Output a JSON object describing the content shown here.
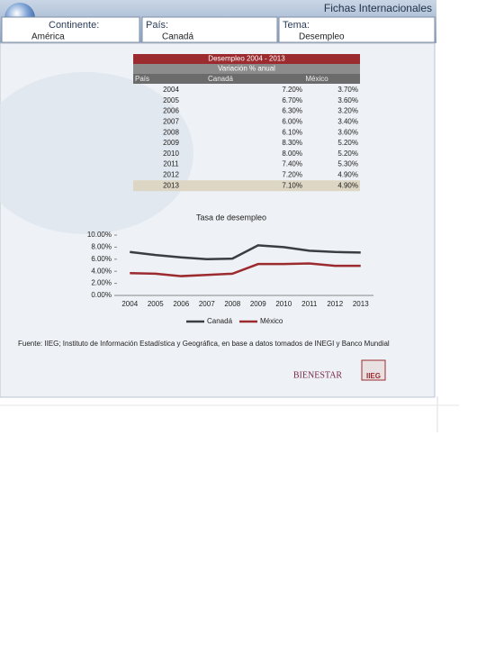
{
  "header": {
    "title": "Fichas Internacionales",
    "fields": [
      {
        "label": "Continente:",
        "value": "América"
      },
      {
        "label": "País:",
        "value": "Canadá"
      },
      {
        "label": "Tema:",
        "value": "Desempleo"
      }
    ]
  },
  "table": {
    "title": "Desempleo 2004 - 2013",
    "subtitle": "Variación % anual",
    "columns": [
      "País",
      "Canadá",
      "México"
    ],
    "rows": [
      [
        "2004",
        "7.20%",
        "3.70%"
      ],
      [
        "2005",
        "6.70%",
        "3.60%"
      ],
      [
        "2006",
        "6.30%",
        "3.20%"
      ],
      [
        "2007",
        "6.00%",
        "3.40%"
      ],
      [
        "2008",
        "6.10%",
        "3.60%"
      ],
      [
        "2009",
        "8.30%",
        "5.20%"
      ],
      [
        "2010",
        "8.00%",
        "5.20%"
      ],
      [
        "2011",
        "7.40%",
        "5.30%"
      ],
      [
        "2012",
        "7.20%",
        "4.90%"
      ],
      [
        "2013",
        "7.10%",
        "4.90%"
      ]
    ]
  },
  "chart_data": {
    "type": "line",
    "title": "Tasa de desempleo",
    "categories": [
      "2004",
      "2005",
      "2006",
      "2007",
      "2008",
      "2009",
      "2010",
      "2011",
      "2012",
      "2013"
    ],
    "series": [
      {
        "name": "Canadá",
        "color": "#3a3d42",
        "values": [
          7.2,
          6.7,
          6.3,
          6.0,
          6.1,
          8.3,
          8.0,
          7.4,
          7.2,
          7.1
        ]
      },
      {
        "name": "México",
        "color": "#9b2b2f",
        "values": [
          3.7,
          3.6,
          3.2,
          3.4,
          3.6,
          5.2,
          5.2,
          5.3,
          4.9,
          4.9
        ]
      }
    ],
    "ylim": [
      0,
      10
    ],
    "yticks": [
      {
        "value": 0,
        "label": "0.00%"
      },
      {
        "value": 2,
        "label": "2.00%"
      },
      {
        "value": 4,
        "label": "4.00%"
      },
      {
        "value": 6,
        "label": "6.00%"
      },
      {
        "value": 8,
        "label": "8.00%"
      },
      {
        "value": 10,
        "label": "10.00%"
      }
    ],
    "legend": "bottom"
  },
  "source": "Fuente: IIEG; Instituto de Información Estadística y Geográfica, en base a datos tomados de  INEGI y Banco Mundial",
  "logos": [
    "BIENESTAR",
    "IIEG"
  ]
}
